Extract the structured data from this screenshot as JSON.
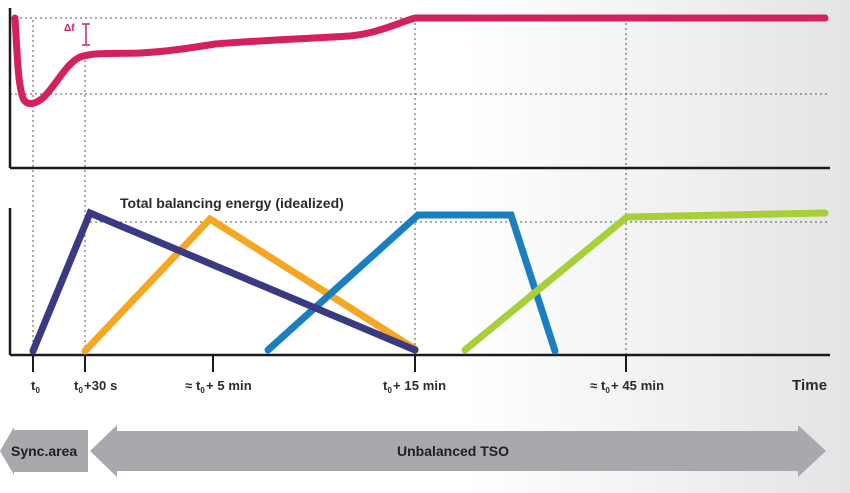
{
  "frequency_panel": {
    "delta_label": "Δf",
    "colors": {
      "frequency": "#d4205f",
      "axis": "#1a1a1a",
      "grid": "#555555"
    }
  },
  "energy_panel": {
    "title": "Total balancing energy (idealized)",
    "colors": {
      "total": "#3a3a82",
      "orange": "#f5a623",
      "blue": "#1a7fc1",
      "green": "#a8cf38"
    }
  },
  "time_axis": {
    "ticks": [
      {
        "pre": "t",
        "sub": "0",
        "post": ""
      },
      {
        "pre": "t",
        "sub": "0",
        "post": "+30 s"
      },
      {
        "pre": "≈ t",
        "sub": "0",
        "post": "+ 5 min"
      },
      {
        "pre": "t",
        "sub": "0",
        "post": "+ 15 min"
      },
      {
        "pre": "≈ t",
        "sub": "0",
        "post": "+ 45 min"
      }
    ],
    "axis_label": "Time"
  },
  "bottom_arrows": {
    "sync_area": "Sync.area",
    "unbalanced_tso": "Unbalanced TSO",
    "color": "#a7a9ac"
  }
}
